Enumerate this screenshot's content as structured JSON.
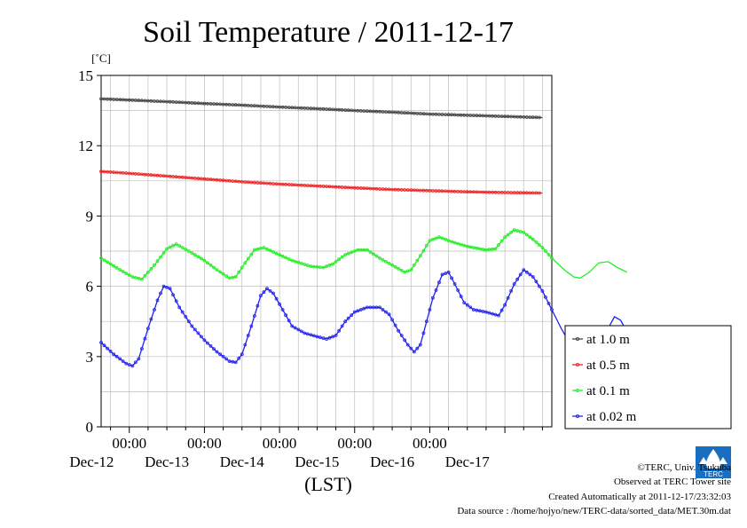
{
  "chart_data": {
    "type": "line",
    "title": "Soil Temperature / 2011-12-17",
    "ylabel": "[˚C]",
    "xlabel": "(LST)",
    "ylim": [
      0,
      15
    ],
    "yticks": [
      0,
      3,
      6,
      9,
      12,
      15
    ],
    "x_time_labels": [
      "00:00",
      "00:00",
      "00:00",
      "00:00",
      "00:00"
    ],
    "x_date_labels": [
      "Dec-12",
      "Dec-13",
      "Dec-14",
      "Dec-15",
      "Dec-16",
      "Dec-17"
    ],
    "x_range_hours": [
      -9,
      135
    ],
    "grid": true,
    "legend_position": "right",
    "series": [
      {
        "name": "at 1.0 m",
        "color": "#444444",
        "points": [
          [
            -9,
            14.0
          ],
          [
            0,
            13.95
          ],
          [
            12,
            13.88
          ],
          [
            24,
            13.8
          ],
          [
            36,
            13.73
          ],
          [
            48,
            13.65
          ],
          [
            60,
            13.58
          ],
          [
            72,
            13.5
          ],
          [
            84,
            13.43
          ],
          [
            96,
            13.35
          ],
          [
            108,
            13.3
          ],
          [
            120,
            13.25
          ],
          [
            132,
            13.2
          ]
        ]
      },
      {
        "name": "at 0.5 m",
        "color": "#ee2222",
        "points": [
          [
            -9,
            10.9
          ],
          [
            0,
            10.82
          ],
          [
            12,
            10.7
          ],
          [
            24,
            10.58
          ],
          [
            36,
            10.46
          ],
          [
            48,
            10.36
          ],
          [
            60,
            10.28
          ],
          [
            72,
            10.2
          ],
          [
            84,
            10.13
          ],
          [
            96,
            10.08
          ],
          [
            108,
            10.03
          ],
          [
            120,
            10.0
          ],
          [
            132,
            9.98
          ]
        ]
      },
      {
        "name": "at 0.1 m",
        "color": "#22ee22",
        "points": [
          [
            -9,
            7.2
          ],
          [
            -3,
            6.7
          ],
          [
            1,
            6.4
          ],
          [
            4,
            6.3
          ],
          [
            8,
            6.9
          ],
          [
            12,
            7.6
          ],
          [
            15,
            7.8
          ],
          [
            19,
            7.5
          ],
          [
            24,
            7.1
          ],
          [
            28,
            6.7
          ],
          [
            32,
            6.35
          ],
          [
            34,
            6.4
          ],
          [
            37,
            7.0
          ],
          [
            40,
            7.55
          ],
          [
            43,
            7.65
          ],
          [
            47,
            7.4
          ],
          [
            52,
            7.1
          ],
          [
            58,
            6.85
          ],
          [
            62,
            6.8
          ],
          [
            65,
            6.95
          ],
          [
            69,
            7.35
          ],
          [
            73,
            7.55
          ],
          [
            76,
            7.55
          ],
          [
            80,
            7.2
          ],
          [
            84,
            6.9
          ],
          [
            88,
            6.6
          ],
          [
            90,
            6.7
          ],
          [
            93,
            7.3
          ],
          [
            96,
            7.95
          ],
          [
            99,
            8.1
          ],
          [
            103,
            7.9
          ],
          [
            108,
            7.7
          ],
          [
            114,
            7.55
          ],
          [
            117,
            7.6
          ],
          [
            120,
            8.1
          ],
          [
            123,
            8.4
          ],
          [
            126,
            8.3
          ],
          [
            129,
            8.0
          ],
          [
            132,
            7.65
          ],
          [
            135,
            7.2
          ],
          [
            139,
            6.7
          ],
          [
            142,
            6.4
          ],
          [
            144,
            6.35
          ],
          [
            147,
            6.6
          ],
          [
            150,
            7.0
          ],
          [
            153,
            7.05
          ],
          [
            156,
            6.8
          ],
          [
            159,
            6.6
          ]
        ]
      },
      {
        "name": "at 0.02 m",
        "color": "#2222ee",
        "points": [
          [
            -9,
            3.6
          ],
          [
            -5,
            3.1
          ],
          [
            -1,
            2.7
          ],
          [
            1,
            2.6
          ],
          [
            3,
            2.9
          ],
          [
            6,
            4.2
          ],
          [
            9,
            5.4
          ],
          [
            11,
            6.0
          ],
          [
            13,
            5.9
          ],
          [
            16,
            5.1
          ],
          [
            20,
            4.3
          ],
          [
            24,
            3.7
          ],
          [
            28,
            3.2
          ],
          [
            32,
            2.8
          ],
          [
            34,
            2.75
          ],
          [
            36,
            3.1
          ],
          [
            39,
            4.3
          ],
          [
            42,
            5.6
          ],
          [
            44,
            5.9
          ],
          [
            46,
            5.7
          ],
          [
            49,
            5.0
          ],
          [
            52,
            4.3
          ],
          [
            56,
            4.0
          ],
          [
            60,
            3.85
          ],
          [
            63,
            3.75
          ],
          [
            66,
            3.9
          ],
          [
            69,
            4.5
          ],
          [
            72,
            4.9
          ],
          [
            76,
            5.1
          ],
          [
            80,
            5.1
          ],
          [
            83,
            4.8
          ],
          [
            86,
            4.1
          ],
          [
            89,
            3.5
          ],
          [
            91,
            3.2
          ],
          [
            93,
            3.5
          ],
          [
            95,
            4.5
          ],
          [
            97,
            5.5
          ],
          [
            100,
            6.5
          ],
          [
            102,
            6.6
          ],
          [
            104,
            6.1
          ],
          [
            107,
            5.3
          ],
          [
            110,
            5.0
          ],
          [
            114,
            4.9
          ],
          [
            118,
            4.75
          ],
          [
            120,
            5.2
          ],
          [
            123,
            6.1
          ],
          [
            126,
            6.7
          ],
          [
            129,
            6.4
          ],
          [
            132,
            5.8
          ],
          [
            135,
            5.0
          ],
          [
            138,
            4.2
          ],
          [
            141,
            3.5
          ],
          [
            144,
            2.9
          ],
          [
            147,
            2.5
          ],
          [
            149,
            2.5
          ],
          [
            151,
            3.1
          ],
          [
            153,
            4.2
          ],
          [
            155,
            4.7
          ],
          [
            157,
            4.55
          ],
          [
            160,
            3.8
          ],
          [
            163,
            3.0
          ],
          [
            165,
            2.85
          ]
        ]
      }
    ]
  },
  "logo": {
    "name": "terc-logo-icon",
    "text": "TERC"
  },
  "credits": {
    "copyright": "©TERC, Univ. Tsukuba",
    "site": "Observed at TERC Tower site",
    "created": "Created Automatically at 2011-12-17/23:32:03",
    "source": "Data source : /home/hojyo/new/TERC-data/sorted_data/MET.30m.dat"
  }
}
